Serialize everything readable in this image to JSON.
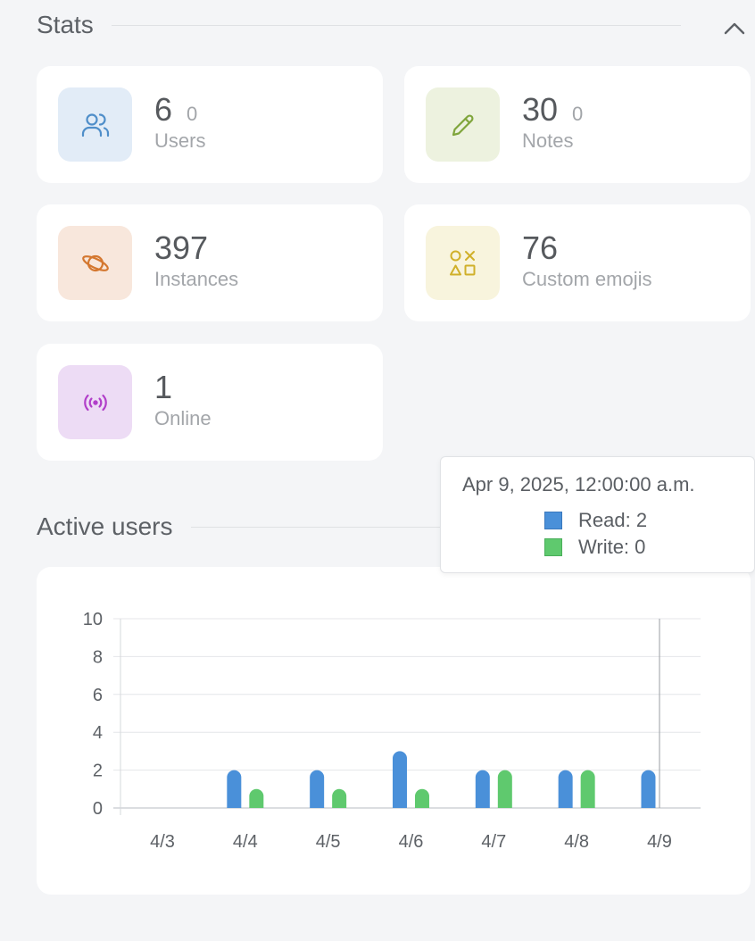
{
  "stats": {
    "title": "Stats",
    "cards": [
      {
        "value": "6",
        "diff": "0",
        "label": "Users",
        "icon": "users-icon",
        "bg": "#e2ecf7",
        "fg": "#4f8ec9"
      },
      {
        "value": "30",
        "diff": "0",
        "label": "Notes",
        "icon": "pencil-icon",
        "bg": "#edf2df",
        "fg": "#7fa53b"
      },
      {
        "value": "397",
        "diff": "",
        "label": "Instances",
        "icon": "planet-icon",
        "bg": "#f8e7dc",
        "fg": "#d4772f"
      },
      {
        "value": "76",
        "diff": "",
        "label": "Custom emojis",
        "icon": "shapes-icon",
        "bg": "#f8f4dd",
        "fg": "#d0b02a"
      },
      {
        "value": "1",
        "diff": "",
        "label": "Online",
        "icon": "broadcast-icon",
        "bg": "#eddcf5",
        "fg": "#b13fc9"
      }
    ]
  },
  "active_users": {
    "title": "Active users"
  },
  "colors": {
    "read": "#4a90d9",
    "write": "#5fc96e"
  },
  "chart_data": {
    "type": "bar",
    "categories": [
      "4/3",
      "4/4",
      "4/5",
      "4/6",
      "4/7",
      "4/8",
      "4/9"
    ],
    "series": [
      {
        "name": "Read",
        "values": [
          0,
          2,
          2,
          3,
          2,
          2,
          2
        ]
      },
      {
        "name": "Write",
        "values": [
          0,
          1,
          1,
          1,
          2,
          2,
          0
        ]
      }
    ],
    "ylim": [
      0,
      10
    ],
    "yticks": [
      0,
      2,
      4,
      6,
      8,
      10
    ],
    "grid": true
  },
  "tooltip": {
    "title": "Apr 9, 2025, 12:00:00 a.m.",
    "read_label": "Read: 2",
    "write_label": "Write: 0",
    "active_index": 6
  }
}
